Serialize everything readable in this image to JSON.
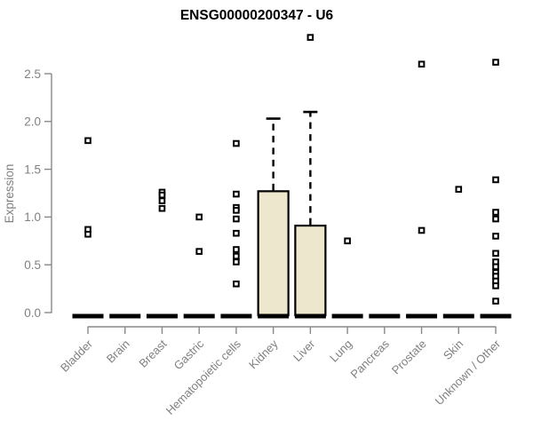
{
  "chart_data": {
    "type": "boxplot",
    "title": "ENSG00000200347 - U6",
    "ylabel": "Expression",
    "xlabel": "",
    "yticks": [
      "0.0",
      "0.5",
      "1.0",
      "1.5",
      "2.0",
      "2.5"
    ],
    "ylim": [
      0.0,
      2.9
    ],
    "grid": "off",
    "legend": "none",
    "categories": [
      "Bladder",
      "Brain",
      "Breast",
      "Gastric",
      "Hematopoietic cells",
      "Kidney",
      "Liver",
      "Lung",
      "Pancreas",
      "Prostate",
      "Skin",
      "Unknown / Other"
    ],
    "boxes": [
      {
        "category": "Bladder",
        "q1": 0,
        "median": 0,
        "q3": 0,
        "whisker_high": 0,
        "outliers": [
          1.8,
          0.87,
          0.82
        ]
      },
      {
        "category": "Brain",
        "q1": 0,
        "median": 0,
        "q3": 0,
        "whisker_high": 0,
        "outliers": []
      },
      {
        "category": "Breast",
        "q1": 0,
        "median": 0,
        "q3": 0,
        "whisker_high": 0,
        "outliers": [
          1.26,
          1.23,
          1.17,
          1.09
        ]
      },
      {
        "category": "Gastric",
        "q1": 0,
        "median": 0,
        "q3": 0,
        "whisker_high": 0,
        "outliers": [
          1.0,
          0.64
        ]
      },
      {
        "category": "Hematopoietic cells",
        "q1": 0,
        "median": 0,
        "q3": 0,
        "whisker_high": 0,
        "outliers": [
          1.77,
          1.24,
          1.1,
          1.07,
          0.98,
          0.83,
          0.66,
          0.59,
          0.53,
          0.3
        ]
      },
      {
        "category": "Kidney",
        "q1": 0,
        "median": 0,
        "q3": 1.27,
        "whisker_high": 2.03,
        "outliers": []
      },
      {
        "category": "Liver",
        "q1": 0,
        "median": 0,
        "q3": 0.91,
        "whisker_high": 2.1,
        "outliers": [
          2.88
        ]
      },
      {
        "category": "Lung",
        "q1": 0,
        "median": 0,
        "q3": 0,
        "whisker_high": 0,
        "outliers": [
          0.75
        ]
      },
      {
        "category": "Pancreas",
        "q1": 0,
        "median": 0,
        "q3": 0,
        "whisker_high": 0,
        "outliers": []
      },
      {
        "category": "Prostate",
        "q1": 0,
        "median": 0,
        "q3": 0,
        "whisker_high": 0,
        "outliers": [
          2.6,
          0.86
        ]
      },
      {
        "category": "Skin",
        "q1": 0,
        "median": 0,
        "q3": 0,
        "whisker_high": 0,
        "outliers": [
          1.29
        ]
      },
      {
        "category": "Unknown / Other",
        "q1": 0,
        "median": 0,
        "q3": 0,
        "whisker_high": 0,
        "outliers": [
          2.62,
          1.39,
          1.05,
          0.98,
          0.8,
          0.62,
          0.53,
          0.48,
          0.42,
          0.38,
          0.33,
          0.28,
          0.12
        ]
      }
    ],
    "colors": {
      "box_fill": "#ECE7CD",
      "box_border": "#000000",
      "median": "#000000",
      "whisker": "#000000",
      "outlier_stroke": "#000000",
      "outlier_fill": "#ffffff",
      "axis_line": "#888888",
      "tick_label": "#808080",
      "title": "#000000",
      "background": "#ffffff"
    }
  }
}
